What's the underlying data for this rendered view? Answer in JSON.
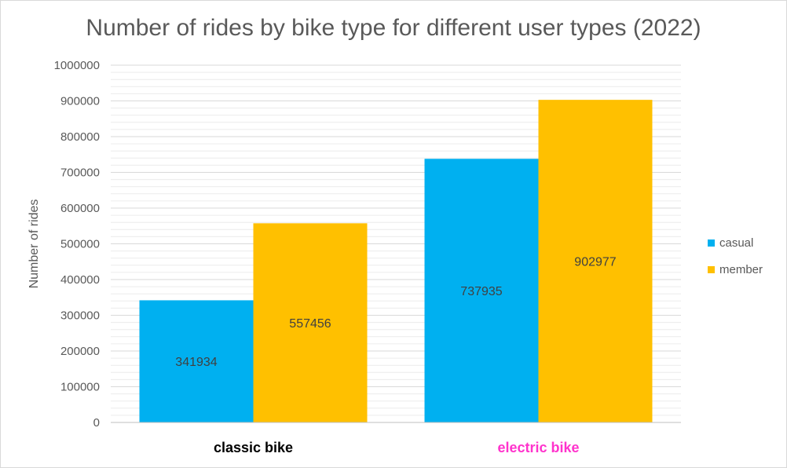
{
  "chart_data": {
    "type": "bar",
    "title": "Number of rides by bike type for different user types (2022)",
    "xlabel": "",
    "ylabel": "Number of rides",
    "categories": [
      "classic bike",
      "electric bike"
    ],
    "category_colors": [
      "#000000",
      "#ff33cc"
    ],
    "series": [
      {
        "name": "casual",
        "color": "#00b0f0",
        "values": [
          341934,
          737935
        ]
      },
      {
        "name": "member",
        "color": "#ffc000",
        "values": [
          557456,
          902977
        ]
      }
    ],
    "ylim": [
      0,
      1000000
    ],
    "yticks": [
      "0",
      "100000",
      "200000",
      "300000",
      "400000",
      "500000",
      "600000",
      "700000",
      "800000",
      "900000",
      "1000000"
    ],
    "grid": true,
    "legend_position": "right"
  }
}
